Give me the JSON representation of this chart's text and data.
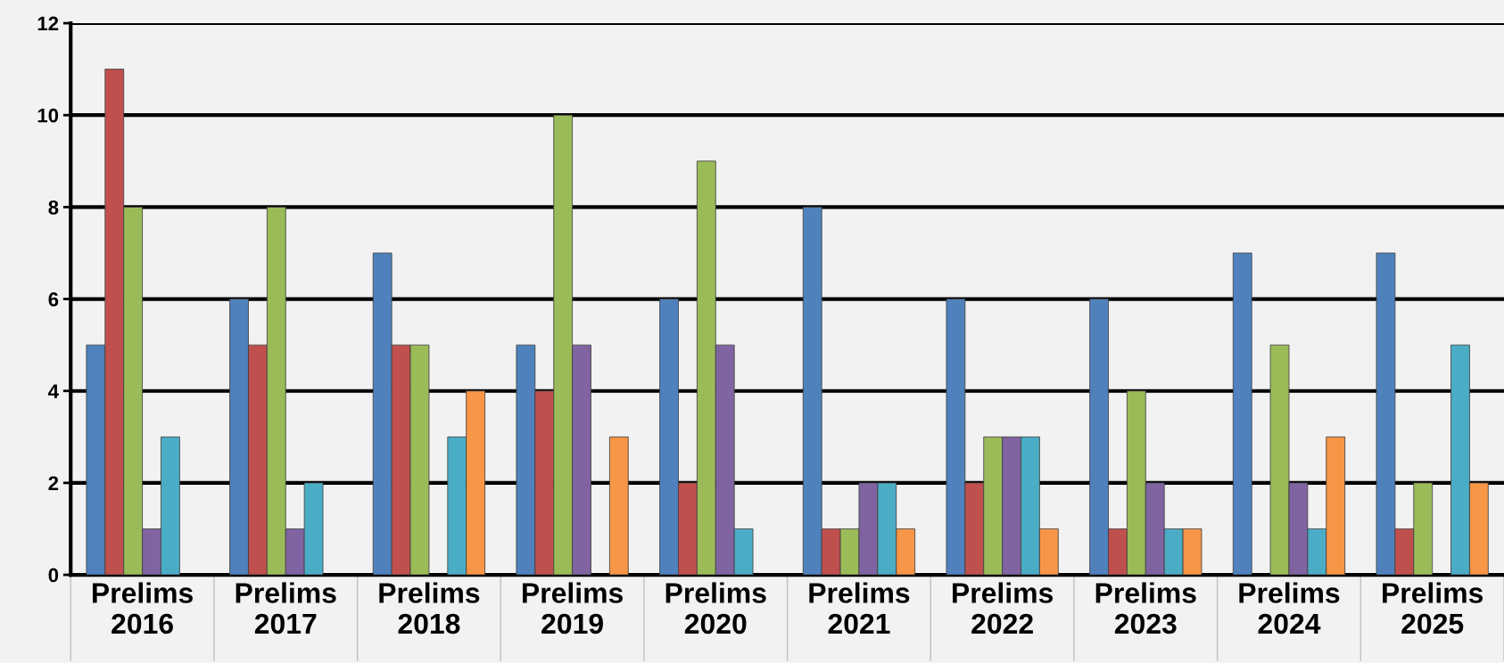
{
  "chart_data": {
    "type": "bar",
    "categories": [
      "Prelims\n2016",
      "Prelims\n2017",
      "Prelims\n2018",
      "Prelims\n2019",
      "Prelims\n2020",
      "Prelims\n2021",
      "Prelims\n2022",
      "Prelims\n2023",
      "Prelims\n2024",
      "Prelims\n2025"
    ],
    "series": [
      {
        "color": "#4f81bd",
        "values": [
          5,
          6,
          7,
          5,
          6,
          8,
          6,
          6,
          7,
          7
        ]
      },
      {
        "color": "#c0504d",
        "values": [
          11,
          5,
          5,
          4,
          2,
          1,
          2,
          1,
          0,
          1
        ]
      },
      {
        "color": "#9bbb59",
        "values": [
          8,
          8,
          5,
          10,
          9,
          1,
          3,
          4,
          5,
          2
        ]
      },
      {
        "color": "#8064a2",
        "values": [
          1,
          1,
          0,
          5,
          5,
          2,
          3,
          2,
          2,
          0
        ]
      },
      {
        "color": "#4bacc6",
        "values": [
          3,
          2,
          3,
          0,
          1,
          2,
          3,
          1,
          1,
          5
        ]
      },
      {
        "color": "#f79646",
        "values": [
          0,
          0,
          4,
          3,
          0,
          1,
          1,
          1,
          3,
          2
        ]
      }
    ],
    "ylim": [
      0,
      12
    ],
    "yticks": [
      0,
      2,
      4,
      6,
      8,
      10,
      12
    ],
    "grid": "y",
    "legend": false
  }
}
